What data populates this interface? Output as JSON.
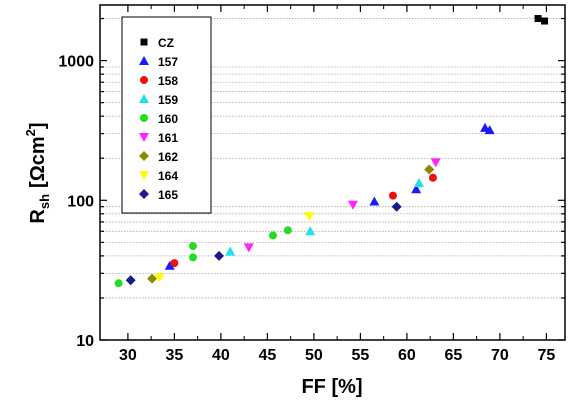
{
  "chart_data": {
    "type": "scatter",
    "xlabel": "FF [%]",
    "ylabel": {
      "main": "R",
      "sub": "sh",
      "unit": "[Ωcm",
      "sup": "2",
      "close": "]"
    },
    "xlim": [
      27,
      77
    ],
    "ylim": [
      10,
      2500
    ],
    "y_scale": "log",
    "grid": "horizontal minor dotted",
    "legend_position": "top-left",
    "x_ticks": [
      30,
      35,
      40,
      45,
      50,
      55,
      60,
      65,
      70,
      75
    ],
    "y_ticks": [
      {
        "value": 10,
        "label": "10"
      },
      {
        "value": 100,
        "label": "100"
      },
      {
        "value": 1000,
        "label": "1000"
      }
    ],
    "series": [
      {
        "name": "CZ",
        "marker": "square",
        "color": "#000000",
        "points": [
          [
            74.1,
            2000
          ],
          [
            74.8,
            1920
          ]
        ]
      },
      {
        "name": "157",
        "marker": "triangle-up",
        "color": "#1a1aff",
        "points": [
          [
            34.5,
            34
          ],
          [
            56.5,
            98
          ],
          [
            61.0,
            120
          ],
          [
            68.4,
            330
          ],
          [
            68.9,
            318
          ]
        ]
      },
      {
        "name": "158",
        "marker": "circle",
        "color": "#ee1111",
        "points": [
          [
            35.0,
            35.5
          ],
          [
            58.5,
            108
          ],
          [
            62.8,
            145
          ]
        ]
      },
      {
        "name": "159",
        "marker": "triangle-up",
        "color": "#22e0f0",
        "points": [
          [
            41.0,
            43
          ],
          [
            49.6,
            60
          ],
          [
            61.3,
            133
          ]
        ]
      },
      {
        "name": "160",
        "marker": "circle",
        "color": "#22dd22",
        "points": [
          [
            29.0,
            25.5
          ],
          [
            37.0,
            39
          ],
          [
            37.0,
            47
          ],
          [
            45.6,
            56
          ],
          [
            47.2,
            61
          ]
        ]
      },
      {
        "name": "161",
        "marker": "triangle-down",
        "color": "#ff22ff",
        "points": [
          [
            43.0,
            46
          ],
          [
            54.2,
            93
          ],
          [
            63.1,
            187
          ]
        ]
      },
      {
        "name": "162",
        "marker": "diamond",
        "color": "#8b8b00",
        "points": [
          [
            32.6,
            27.5
          ],
          [
            62.4,
            166
          ]
        ]
      },
      {
        "name": "164",
        "marker": "triangle-down",
        "color": "#ffff00",
        "points": [
          [
            33.4,
            28
          ],
          [
            49.5,
            77
          ]
        ]
      },
      {
        "name": "165",
        "marker": "diamond",
        "color": "#1a1a8a",
        "points": [
          [
            30.3,
            26.8
          ],
          [
            39.8,
            40
          ],
          [
            58.9,
            90
          ]
        ]
      }
    ]
  }
}
